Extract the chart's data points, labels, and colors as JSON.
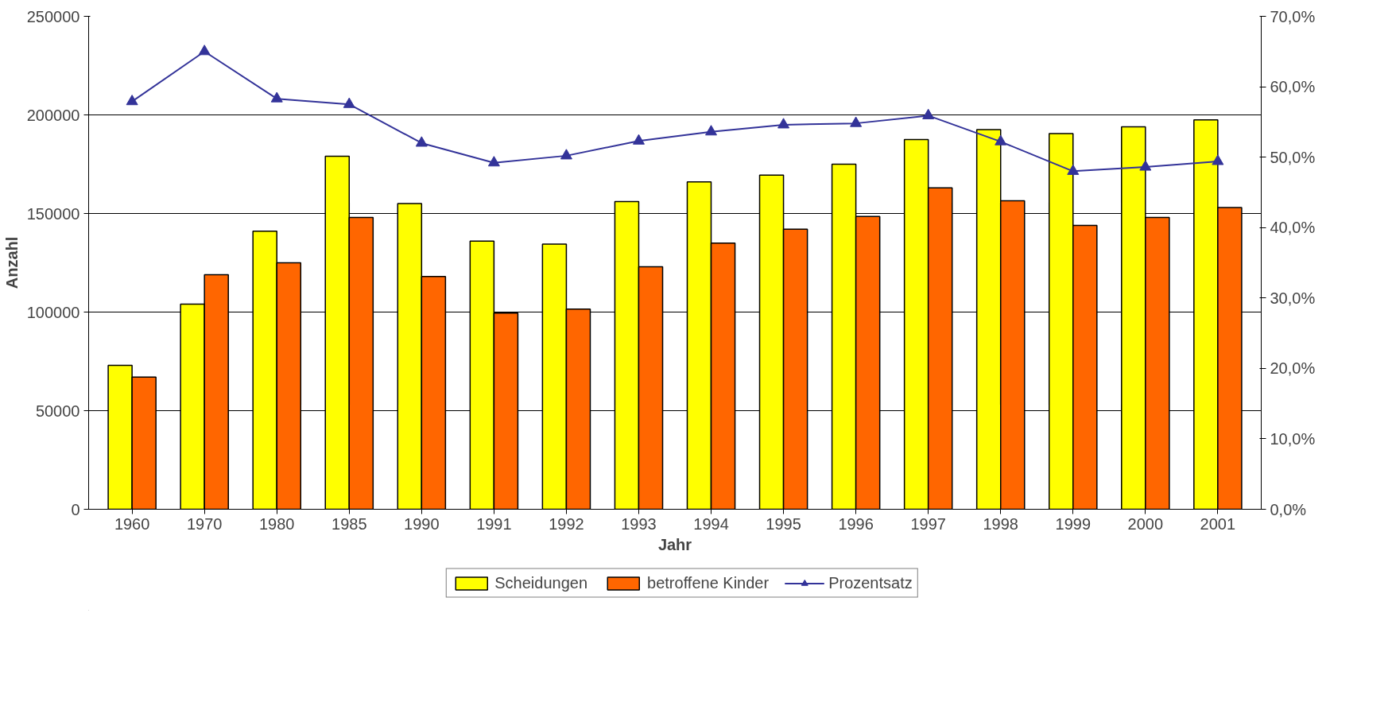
{
  "chart_data": {
    "type": "bar",
    "xlabel": "Jahr",
    "ylabel": "Anzahl",
    "categories": [
      "1960",
      "1970",
      "1980",
      "1985",
      "1990",
      "1991",
      "1992",
      "1993",
      "1994",
      "1995",
      "1996",
      "1997",
      "1998",
      "1999",
      "2000",
      "2001"
    ],
    "series": [
      {
        "name": "Scheidungen",
        "color": "#ffff00",
        "values": [
          73000,
          104000,
          141000,
          179000,
          155000,
          136000,
          134500,
          156000,
          166000,
          169500,
          175000,
          187500,
          192500,
          190500,
          194000,
          197500
        ]
      },
      {
        "name": "betroffene Kinder",
        "color": "#ff6600",
        "values": [
          67000,
          119000,
          125000,
          148000,
          118000,
          99500,
          101500,
          123000,
          135000,
          142000,
          148500,
          163000,
          156500,
          144000,
          148000,
          153000
        ]
      },
      {
        "name": "Prozentsatz",
        "type": "line",
        "axis": "y2",
        "marker": "triangle",
        "color": "#333399",
        "values": [
          57.9,
          65.0,
          58.3,
          57.5,
          52.0,
          49.2,
          50.2,
          52.3,
          53.6,
          54.6,
          54.8,
          55.9,
          52.2,
          48.0,
          48.6,
          49.4
        ]
      }
    ],
    "ylim": [
      0,
      250000
    ],
    "yticks": [
      0,
      50000,
      100000,
      150000,
      200000,
      250000
    ],
    "y2lim": [
      0,
      70
    ],
    "y2ticks": [
      {
        "value": 0,
        "label": "0,0%"
      },
      {
        "value": 10,
        "label": "10,0%"
      },
      {
        "value": 20,
        "label": "20,0%"
      },
      {
        "value": 30,
        "label": "30,0%"
      },
      {
        "value": 40,
        "label": "40,0%"
      },
      {
        "value": 50,
        "label": "50,0%"
      },
      {
        "value": 60,
        "label": "60,0%"
      },
      {
        "value": 70,
        "label": "70,0%"
      }
    ],
    "grid": "y",
    "legend": "bottom"
  }
}
